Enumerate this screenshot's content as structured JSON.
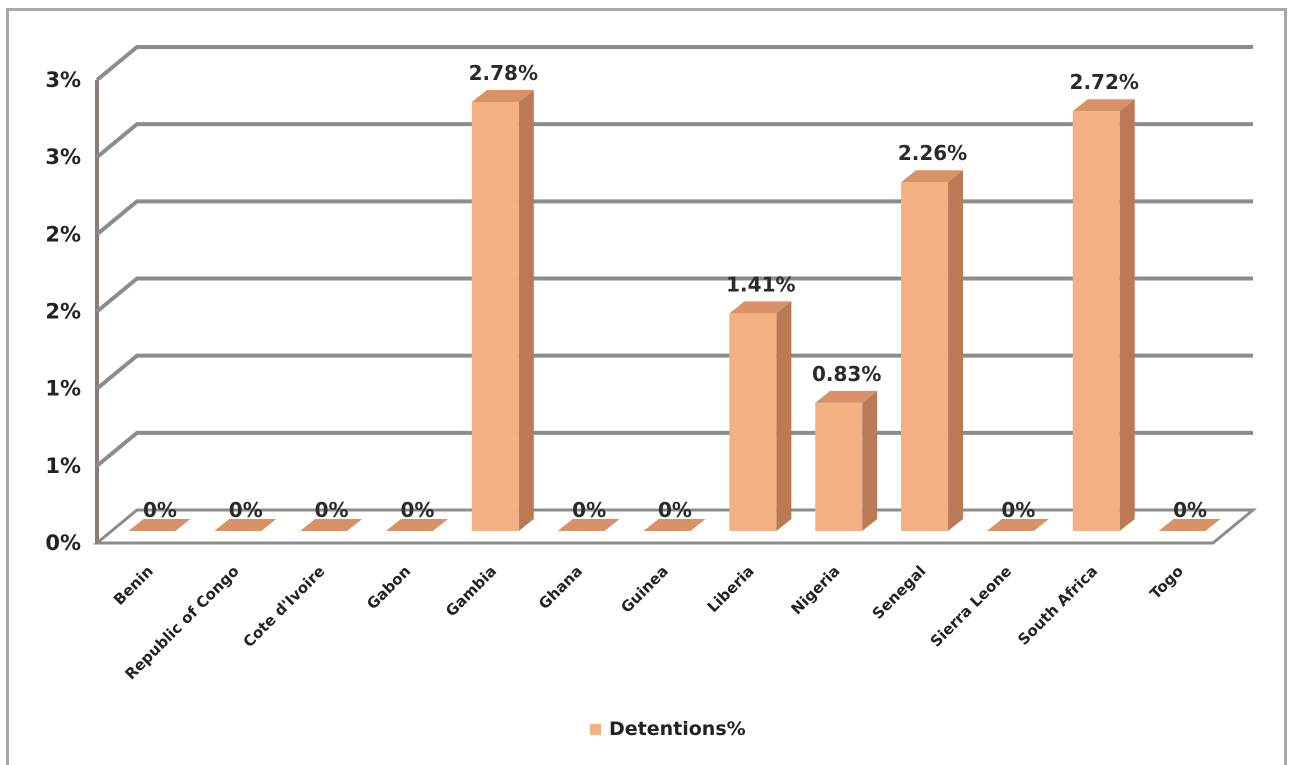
{
  "chart_data": {
    "type": "bar",
    "categories": [
      "Benin",
      "Republic of Congo",
      "Cote d'Ivoire",
      "Gabon",
      "Gambia",
      "Ghana",
      "Guinea",
      "Liberia",
      "Nigeria",
      "Senegal",
      "Sierra Leone",
      "South Africa",
      "Togo"
    ],
    "series": [
      {
        "name": "Detentions%",
        "values": [
          0,
          0,
          0,
          0,
          2.78,
          0,
          0,
          1.41,
          0.83,
          2.26,
          0,
          2.72,
          0
        ],
        "data_labels": [
          "0%",
          "0%",
          "0%",
          "0%",
          "2.78%",
          "0%",
          "0%",
          "1.41%",
          "0.83%",
          "2.26%",
          "0%",
          "2.72%",
          "0%"
        ]
      }
    ],
    "y_ticks": [
      {
        "value": 0,
        "label": "0%"
      },
      {
        "value": 0.5,
        "label": "1%"
      },
      {
        "value": 1.0,
        "label": "1%"
      },
      {
        "value": 1.5,
        "label": "2%"
      },
      {
        "value": 2.0,
        "label": "2%"
      },
      {
        "value": 2.5,
        "label": "3%"
      },
      {
        "value": 3.0,
        "label": "3%"
      }
    ],
    "ylim": [
      0,
      3
    ],
    "grid": true,
    "legend": "bottom",
    "style": "3d-column",
    "colors": {
      "bar_front": "#f3b183",
      "bar_side": "#b97a55",
      "bar_top": "#d99268",
      "gridline": "#8c8c8c",
      "wall_edge": "#8b7b72"
    }
  }
}
